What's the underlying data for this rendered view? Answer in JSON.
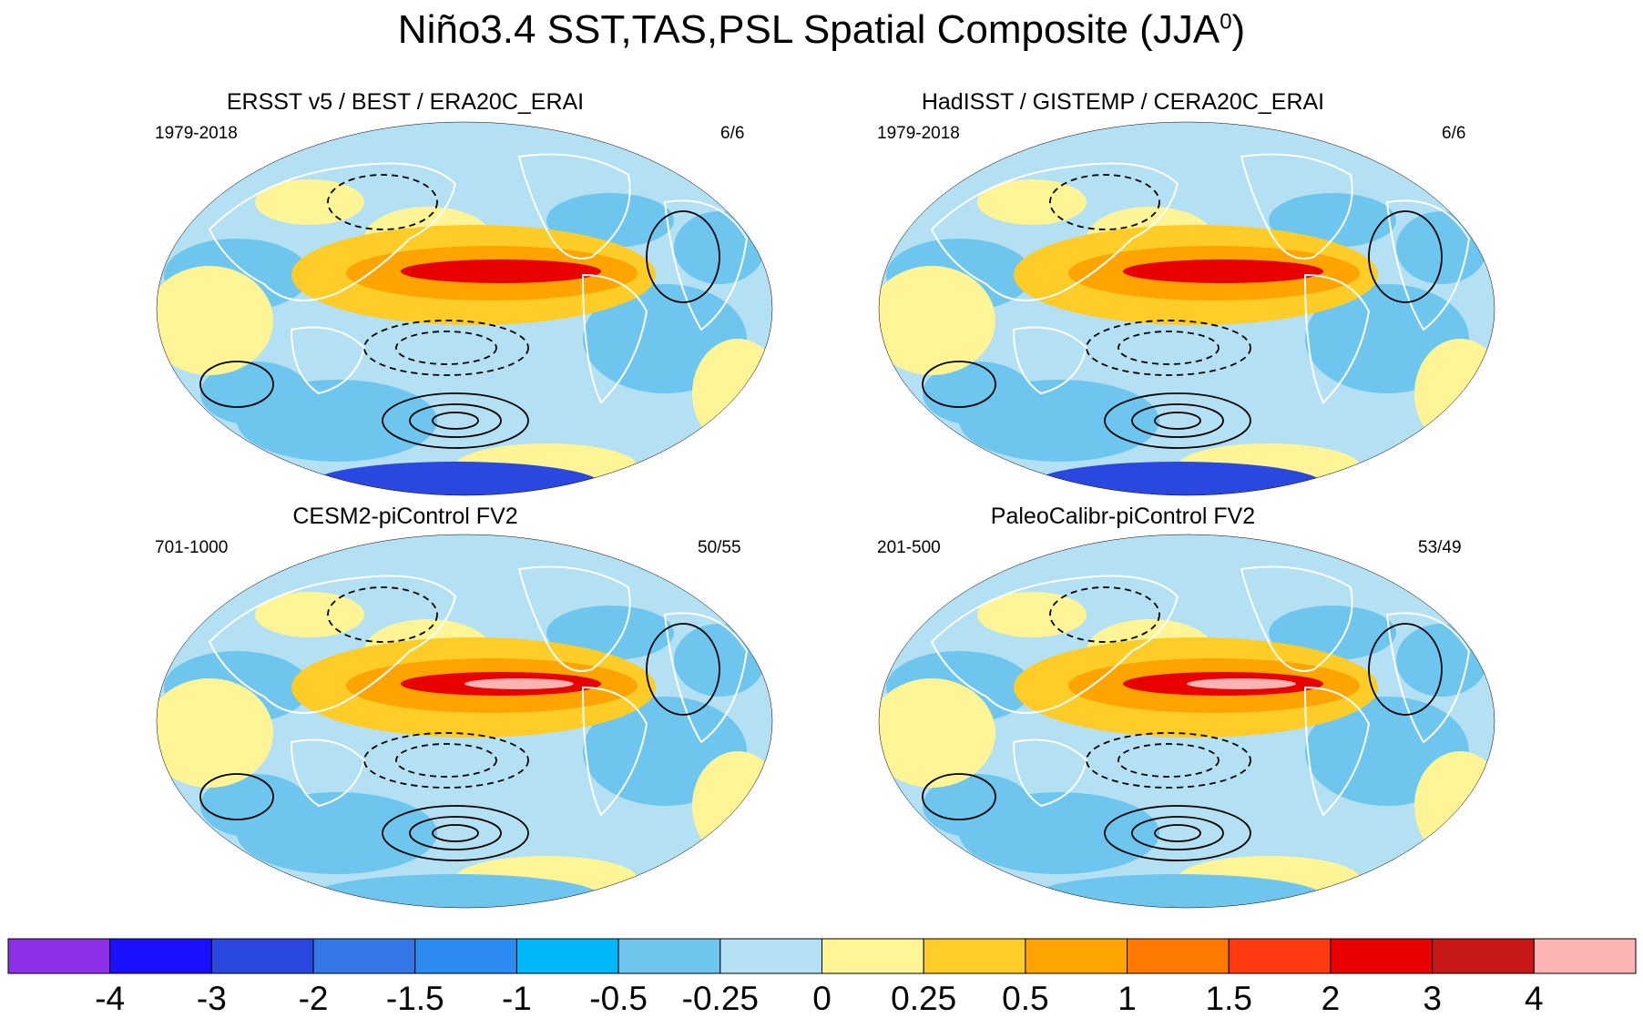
{
  "title": {
    "main": "Niño3.4 SST,TAS,PSL Spatial Composite (JJA",
    "superscript": "0",
    "close": ")"
  },
  "panels": [
    {
      "title": "ERSST v5 / BEST / ERA20C_ERAI",
      "period": "1979-2018",
      "count": "6/6"
    },
    {
      "title": "HadISST / GISTEMP / CERA20C_ERAI",
      "period": "1979-2018",
      "count": "6/6"
    },
    {
      "title": "CESM2-piControl FV2",
      "period": "701-1000",
      "count": "50/55"
    },
    {
      "title": "PaleoCalibr-piControl FV2",
      "period": "201-500",
      "count": "53/49"
    }
  ],
  "colorbar": {
    "labels": [
      "-4",
      "-3",
      "-2",
      "-1.5",
      "-1",
      "-0.5",
      "-0.25",
      "0",
      "0.25",
      "0.5",
      "1",
      "1.5",
      "2",
      "3",
      "4"
    ],
    "colors": [
      "#8c2fe6",
      "#1a10ff",
      "#2a48e0",
      "#3478e8",
      "#2c8cf2",
      "#00b8f8",
      "#6ec6ee",
      "#b4e0f4",
      "#fff496",
      "#ffcc28",
      "#ffa400",
      "#ff7800",
      "#ff3a10",
      "#e80000",
      "#c81818",
      "#ffb4b4"
    ]
  },
  "map_colors": {
    "ocean": "#b4e0f4",
    "warm_pale": "#fff496",
    "warm": "#ffcc28",
    "orange": "#ffa400",
    "red": "#e80000",
    "pink": "#ffb4b4",
    "cool": "#6ec6ee",
    "blue": "#2c8cf2",
    "deepblue": "#2a48e0",
    "land_outline": "#ffffff"
  }
}
